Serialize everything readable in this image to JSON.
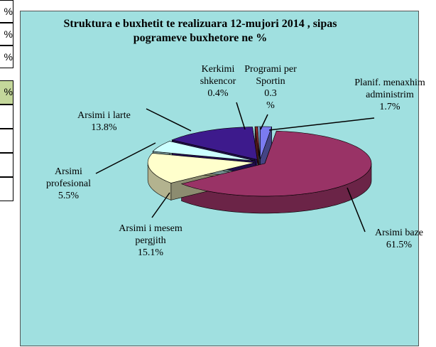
{
  "sheet": {
    "cells": [
      "%",
      "%",
      "%",
      "%"
    ]
  },
  "chart_data": {
    "type": "pie",
    "title": "Struktura e buxhetit te realizuara 12-mujori 2014 , sipas pogrameve buxhetore ne %",
    "categories": [
      "Planif. menaxhim administrim",
      "Arsimi baze",
      "Arsimi i mesem pergjith",
      "Arsimi profesional",
      "Arsimi i larte",
      "Kerkimi shkencor",
      "Programi per Sportin"
    ],
    "values": [
      1.7,
      61.5,
      15.1,
      5.5,
      13.8,
      0.4,
      0.3
    ],
    "value_labels": [
      "1.7%",
      "61.5%",
      "15.1%",
      "5.5%",
      "13.8%",
      "0.4%",
      "0.3 %"
    ],
    "colors": [
      "#7b7bf0",
      "#993366",
      "#ffffcc",
      "#ccffff",
      "#3d1a8c",
      "#8b2d2d",
      "#99ccff"
    ]
  }
}
